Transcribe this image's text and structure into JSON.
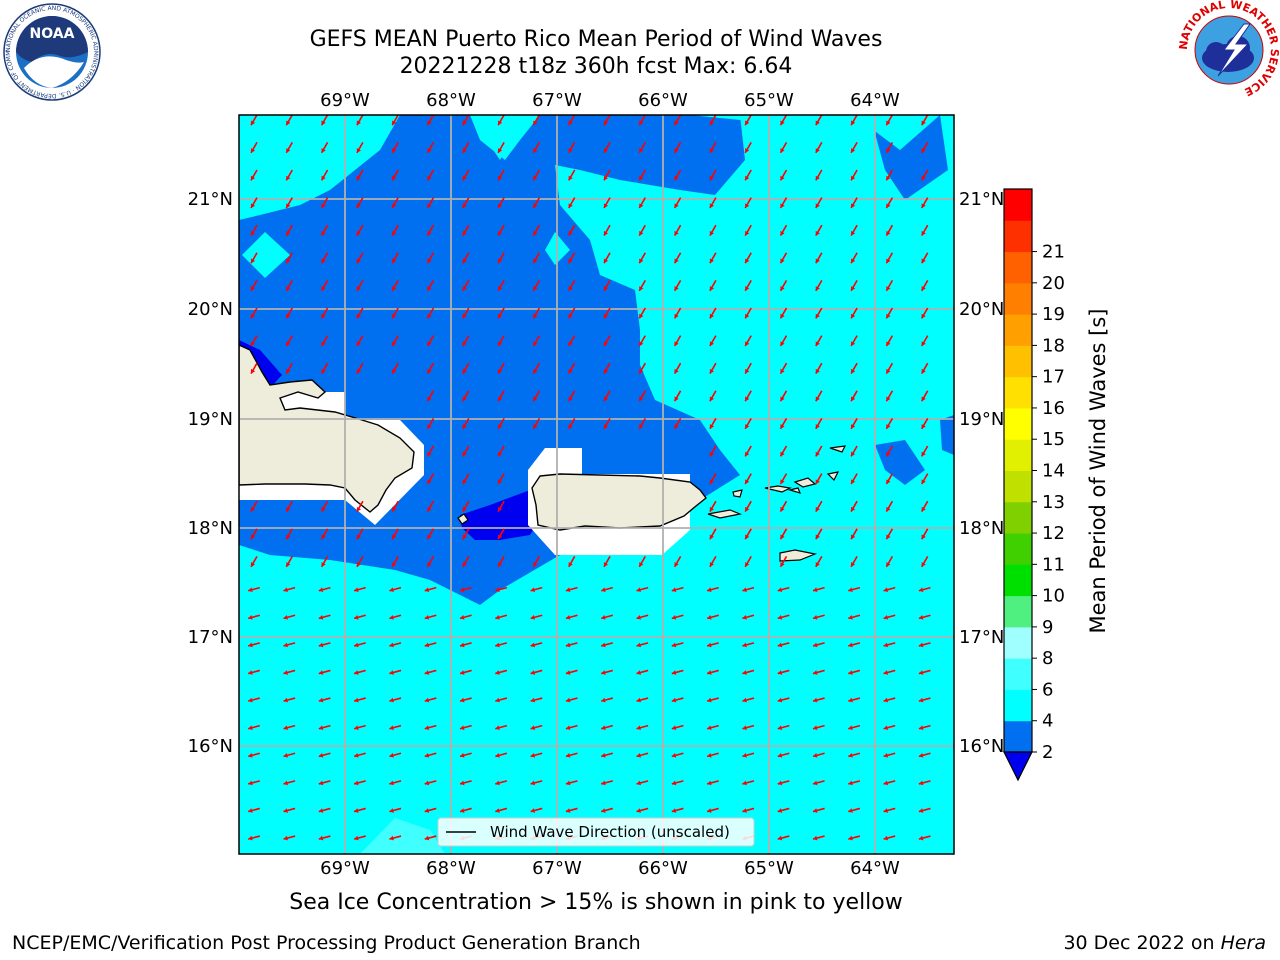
{
  "header": {
    "title_line1": "GEFS MEAN Puerto Rico Mean Period of Wind Waves",
    "title_line2": "20221228 t18z 360h fcst   Max: 6.64"
  },
  "map": {
    "lon_labels": [
      "69°W",
      "68°W",
      "67°W",
      "66°W",
      "65°W",
      "64°W"
    ],
    "lat_labels": [
      "21°N",
      "20°N",
      "19°N",
      "18°N",
      "17°N",
      "16°N"
    ],
    "legend_label": "Wind Wave Direction (unscaled)",
    "arrow_color": "#ff0000",
    "land_color": "#eeeddc"
  },
  "colorbar": {
    "label": "Mean Period of Wind Waves [s]",
    "ticks": [
      "2",
      "4",
      "6",
      "8",
      "9",
      "10",
      "11",
      "12",
      "13",
      "14",
      "15",
      "16",
      "17",
      "18",
      "19",
      "20",
      "21"
    ],
    "colors": [
      "#0070f0",
      "#00ffff",
      "#40ffff",
      "#a0ffff",
      "#50f080",
      "#00e000",
      "#40d000",
      "#80d000",
      "#c0e000",
      "#e0f000",
      "#ffff00",
      "#ffe000",
      "#ffc000",
      "#ffa000",
      "#ff8000",
      "#ff6000",
      "#ff3000",
      "#ff0000"
    ],
    "under_color": "#0000f0"
  },
  "footer": {
    "ice_note": "Sea Ice Concentration > 15% is shown in pink to yellow",
    "credit_left": "NCEP/EMC/Verification Post Processing Product Generation Branch",
    "credit_date": "30 Dec 2022 on ",
    "credit_host": "Hera"
  },
  "logos": {
    "noaa_text": "NOAA",
    "noaa_ring": "NATIONAL OCEANIC AND ATMOSPHERIC ADMINISTRATION · U.S. DEPARTMENT OF COMMERCE",
    "nws_ring": "NATIONAL WEATHER SERVICE"
  }
}
